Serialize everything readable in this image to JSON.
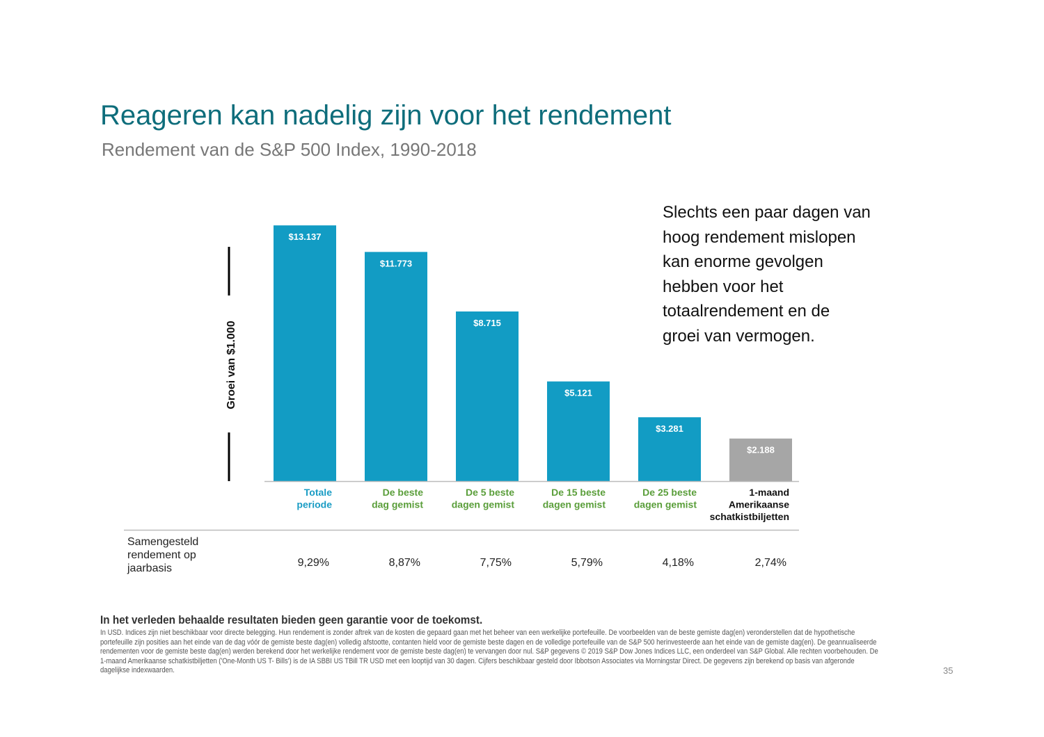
{
  "title": "Reageren kan nadelig zijn voor het rendement",
  "subtitle": "Rendement van de S&P 500 Index, 1990-2018",
  "callout": "Slechts een paar dagen van hoog rendement mislopen kan enorme gevolgen hebben voor het totaalrendement en de groei van vermogen.",
  "row_label": "Samengesteld rendement op jaarbasis",
  "disclaimer": "In het verleden behaalde resultaten bieden geen garantie voor de toekomst.",
  "footnote": "In USD. Indices zijn niet beschikbaar voor directe belegging. Hun rendement is zonder aftrek van de kosten die gepaard gaan met het beheer van een werkelijke portefeuille. De voorbeelden van de beste gemiste dag(en) veronderstellen dat de hypothetische portefeuille zijn posities aan het einde van de dag vóór de gemiste beste dag(en) volledig afstootte, contanten hield voor de gemiste beste dagen en de volledige portefeuille van de S&P 500 herinvesteerde aan het einde van de gemiste dag(en). De geannualiseerde rendementen voor de gemiste beste dag(en) werden berekend door het werkelijke rendement voor de gemiste beste dag(en) te vervangen door nul. S&P gegevens © 2019 S&P Dow Jones Indices LLC, een onderdeel van S&P Global. Alle rechten voorbehouden. De 1-maand Amerikaanse schatkistbiljetten ('One-Month US T- Bills') is de IA SBBI US TBill TR USD met een looptijd van 30 dagen. Cijfers beschikbaar gesteld door Ibbotson Associates via Morningstar Direct. De gegevens zijn berekend op basis van afgeronde dagelijkse indexwaarden.",
  "page_number": "35",
  "chart_data": {
    "type": "bar",
    "ylabel": "Groei van $1.000",
    "ylim": [
      0,
      14000
    ],
    "grid": false,
    "categories": [
      [
        "Totale",
        "periode"
      ],
      [
        "De beste",
        "dag gemist"
      ],
      [
        "De 5 beste",
        "dagen gemist"
      ],
      [
        "De 15 beste",
        "dagen gemist"
      ],
      [
        "De 25 beste",
        "dagen gemist"
      ],
      [
        "1-maand",
        "Amerikaanse",
        "schatkistbiljetten"
      ]
    ],
    "values": [
      13137,
      11773,
      8715,
      5121,
      3281,
      2188
    ],
    "data_labels": [
      "$13.137",
      "$11.773",
      "$8.715",
      "$5.121",
      "$3.281",
      "$2.188"
    ],
    "annualized_returns": [
      "9,29%",
      "8,87%",
      "7,75%",
      "5,79%",
      "4,18%",
      "2,74%"
    ],
    "bar_colors": [
      "#129cc4",
      "#129cc4",
      "#129cc4",
      "#129cc4",
      "#129cc4",
      "#a6a6a6"
    ],
    "label_colors": [
      "#1a9cc4",
      "#5a9e3a",
      "#5a9e3a",
      "#5a9e3a",
      "#5a9e3a",
      "#111111"
    ]
  }
}
